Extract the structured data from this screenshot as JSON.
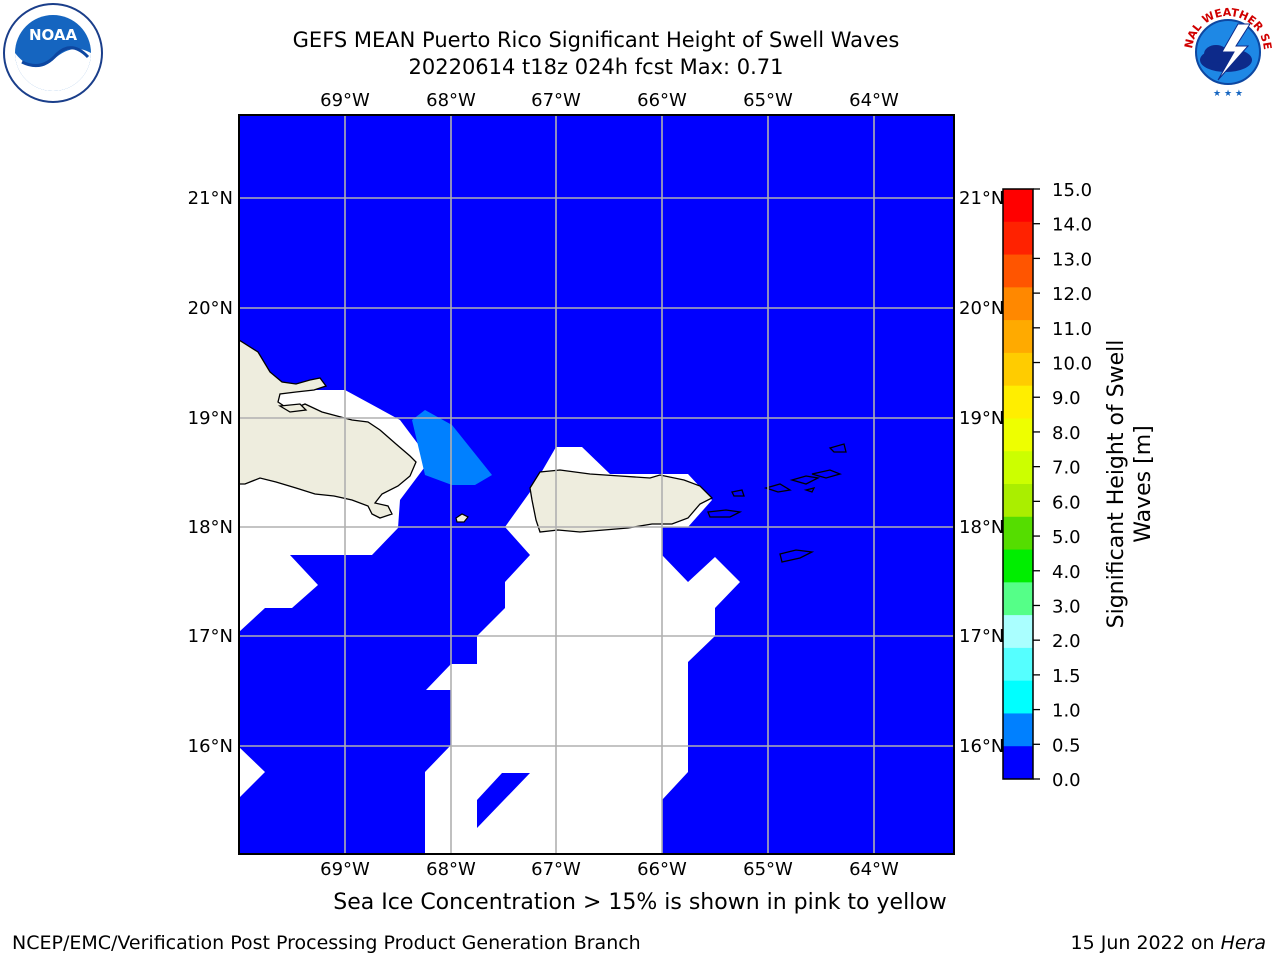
{
  "header": {
    "title_line1": "GEFS MEAN Puerto Rico Significant Height of Swell Waves",
    "title_line2": "20220614 t18z 024h fcst   Max: 0.71"
  },
  "logos": {
    "left": "noaa-logo",
    "left_text": "NOAA",
    "right": "national-weather-service-logo",
    "right_text": "NATIONAL WEATHER SERVICE"
  },
  "map": {
    "lon_labels": [
      "69°W",
      "68°W",
      "67°W",
      "66°W",
      "65°W",
      "64°W"
    ],
    "lat_labels": [
      "21°N",
      "20°N",
      "19°N",
      "18°N",
      "17°N",
      "16°N"
    ],
    "ocean_color": "#0000ff",
    "land_color": "#eeedde",
    "nodata_color": "#ffffff",
    "grid_color": "#b0b0b0"
  },
  "colorbar": {
    "label_line1": "Significant Height of Swell",
    "label_line2": "Waves [m]",
    "ticks": [
      "15.0",
      "14.0",
      "13.0",
      "12.0",
      "11.0",
      "10.0",
      "9.0",
      "8.0",
      "7.0",
      "6.0",
      "5.0",
      "4.0",
      "3.0",
      "2.0",
      "1.5",
      "1.0",
      "0.5",
      "0.0"
    ],
    "colors_top_to_bottom": [
      "#ff0000",
      "#ff2200",
      "#ff5500",
      "#ff8800",
      "#ffaa00",
      "#ffcc00",
      "#ffee00",
      "#eeff00",
      "#ccff00",
      "#aaee00",
      "#55dd00",
      "#00ee00",
      "#55ff88",
      "#aaffff",
      "#55ffff",
      "#00ffff",
      "#0080ff",
      "#0000ff"
    ]
  },
  "note": "Sea Ice Concentration > 15% is shown in pink to yellow",
  "footer": {
    "left": "NCEP/EMC/Verification Post Processing Product Generation Branch",
    "right_prefix": "15 Jun 2022 on ",
    "right_host": "Hera"
  }
}
